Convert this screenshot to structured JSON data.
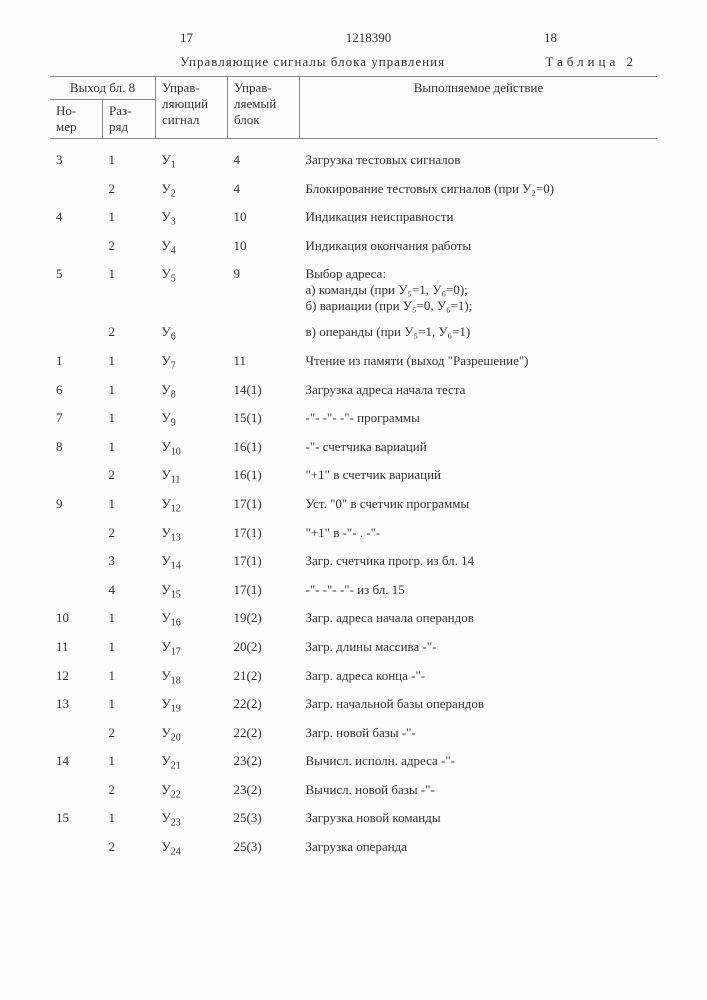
{
  "page_left": "17",
  "doc_number": "1218390",
  "page_right": "18",
  "subtitle": "Управляющие сигналы блока управления",
  "table_label": "Таблица 2",
  "header": {
    "output_bl8": "Выход бл. 8",
    "nomer": "Но-мер",
    "razryad": "Раз-ряд",
    "ctrl_signal": "Управ-ляющий сигнал",
    "ctrl_block": "Управ-ляемый блок",
    "action": "Выполняемое действие"
  },
  "rows": [
    {
      "nomer": "3",
      "razryad": "1",
      "signal": "У",
      "sub": "1",
      "block": "4",
      "action": "Загрузка тестовых сигналов"
    },
    {
      "nomer": "",
      "razryad": "2",
      "signal": "У",
      "sub": "2",
      "block": "4",
      "action": "Блокирование тестовых сигналов (при У₂=0)"
    },
    {
      "nomer": "4",
      "razryad": "1",
      "signal": "У",
      "sub": "3",
      "block": "10",
      "action": "Индикация неисправности"
    },
    {
      "nomer": "",
      "razryad": "2",
      "signal": "У",
      "sub": "4",
      "block": "10",
      "action": "Индикация окончания работы"
    },
    {
      "nomer": "5",
      "razryad": "1",
      "signal": "У",
      "sub": "5",
      "block": "9",
      "action": "Выбор адреса:\nа) команды (при У₅=1, У₆=0);\nб) вариации (при У₅=0, У₆=1);"
    },
    {
      "nomer": "",
      "razryad": "2",
      "signal": "У",
      "sub": "6",
      "block": "",
      "action": "в) операнды (при У₅=1, У₆=1)"
    },
    {
      "nomer": "1",
      "razryad": "1",
      "signal": "У",
      "sub": "7",
      "block": "11",
      "action": "Чтение из памяти (выход \"Разрешение\")"
    },
    {
      "nomer": "6",
      "razryad": "1",
      "signal": "У",
      "sub": "8",
      "block": "14(1)",
      "action": "Загрузка адреса начала теста"
    },
    {
      "nomer": "7",
      "razryad": "1",
      "signal": "У",
      "sub": "9",
      "block": "15(1)",
      "action": "  -\"-       -\"-    -\"-   программы"
    },
    {
      "nomer": "8",
      "razryad": "1",
      "signal": "У",
      "sub": "10",
      "block": "16(1)",
      "action": "  -\"-    счетчика вариаций"
    },
    {
      "nomer": "",
      "razryad": "2",
      "signal": "У",
      "sub": "11",
      "block": "16(1)",
      "action": "\"+1\" в счетчик вариаций"
    },
    {
      "nomer": "9",
      "razryad": "1",
      "signal": "У",
      "sub": "12",
      "block": "17(1)",
      "action": "Уст. \"0\" в счетчик программы"
    },
    {
      "nomer": "",
      "razryad": "2",
      "signal": "У",
      "sub": "13",
      "block": "17(1)",
      "action": "\"+1\" в     -\"- .    -\"-"
    },
    {
      "nomer": "",
      "razryad": "3",
      "signal": "У",
      "sub": "14",
      "block": "17(1)",
      "action": "Загр. счетчика прогр. из бл. 14"
    },
    {
      "nomer": "",
      "razryad": "4",
      "signal": "У",
      "sub": "15",
      "block": "17(1)",
      "action": "  -\"-     -\"-     -\"-   из бл. 15"
    },
    {
      "nomer": "10",
      "razryad": "1",
      "signal": "У",
      "sub": "16",
      "block": "19(2)",
      "action": "Загр. адреса начала операндов"
    },
    {
      "nomer": "11",
      "razryad": "1",
      "signal": "У",
      "sub": "17",
      "block": "20(2)",
      "action": "Загр. длины массива    -\"-"
    },
    {
      "nomer": "12",
      "razryad": "1",
      "signal": "У",
      "sub": "18",
      "block": "21(2)",
      "action": "Загр. адреса конца     -\"-"
    },
    {
      "nomer": "13",
      "razryad": "1",
      "signal": "У",
      "sub": "19",
      "block": "22(2)",
      "action": "Загр. начальной базы операндов"
    },
    {
      "nomer": "",
      "razryad": "2",
      "signal": "У",
      "sub": "20",
      "block": "22(2)",
      "action": "Загр. новой базы       -\"-"
    },
    {
      "nomer": "14",
      "razryad": "1",
      "signal": "У",
      "sub": "21",
      "block": "23(2)",
      "action": "Вычисл. исполн. адреса -\"-"
    },
    {
      "nomer": "",
      "razryad": "2",
      "signal": "У",
      "sub": "22",
      "block": "23(2)",
      "action": "Вычисл. новой базы     -\"-"
    },
    {
      "nomer": "15",
      "razryad": "1",
      "signal": "У",
      "sub": "23",
      "block": "25(3)",
      "action": "Загрузка новой команды"
    },
    {
      "nomer": "",
      "razryad": "2",
      "signal": "У",
      "sub": "24",
      "block": "25(3)",
      "action": "Загрузка операнда"
    }
  ]
}
